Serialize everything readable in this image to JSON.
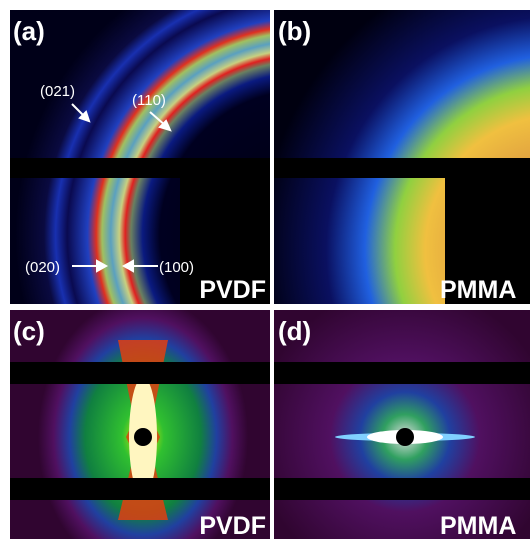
{
  "panels": [
    {
      "label": "(a)",
      "sample": "PVDF",
      "annotations": [
        "(021)",
        "(110)",
        "(020)",
        "(100)"
      ]
    },
    {
      "label": "(b)",
      "sample": "PMMA"
    },
    {
      "label": "(c)",
      "sample": "PVDF"
    },
    {
      "label": "(d)",
      "sample": "PMMA"
    }
  ]
}
